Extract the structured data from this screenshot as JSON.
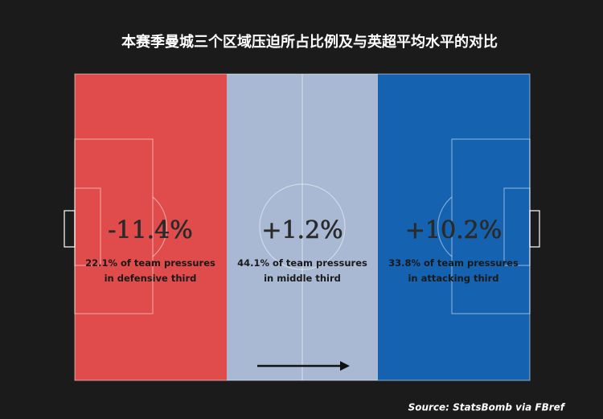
{
  "title": "本赛季曼城三个区域压迫所占比例及与英超平均水平的对比",
  "zones": [
    {
      "change": "-11.4%",
      "line1": "22.1% of team pressures",
      "line2": "in defensive third"
    },
    {
      "change": "+1.2%",
      "line1": "44.1% of team pressures",
      "line2": "in middle third"
    },
    {
      "change": "+10.2%",
      "line1": "33.8% of team pressures",
      "line2": "in attacking third"
    }
  ],
  "source": "Source: StatsBomb via FBref"
}
